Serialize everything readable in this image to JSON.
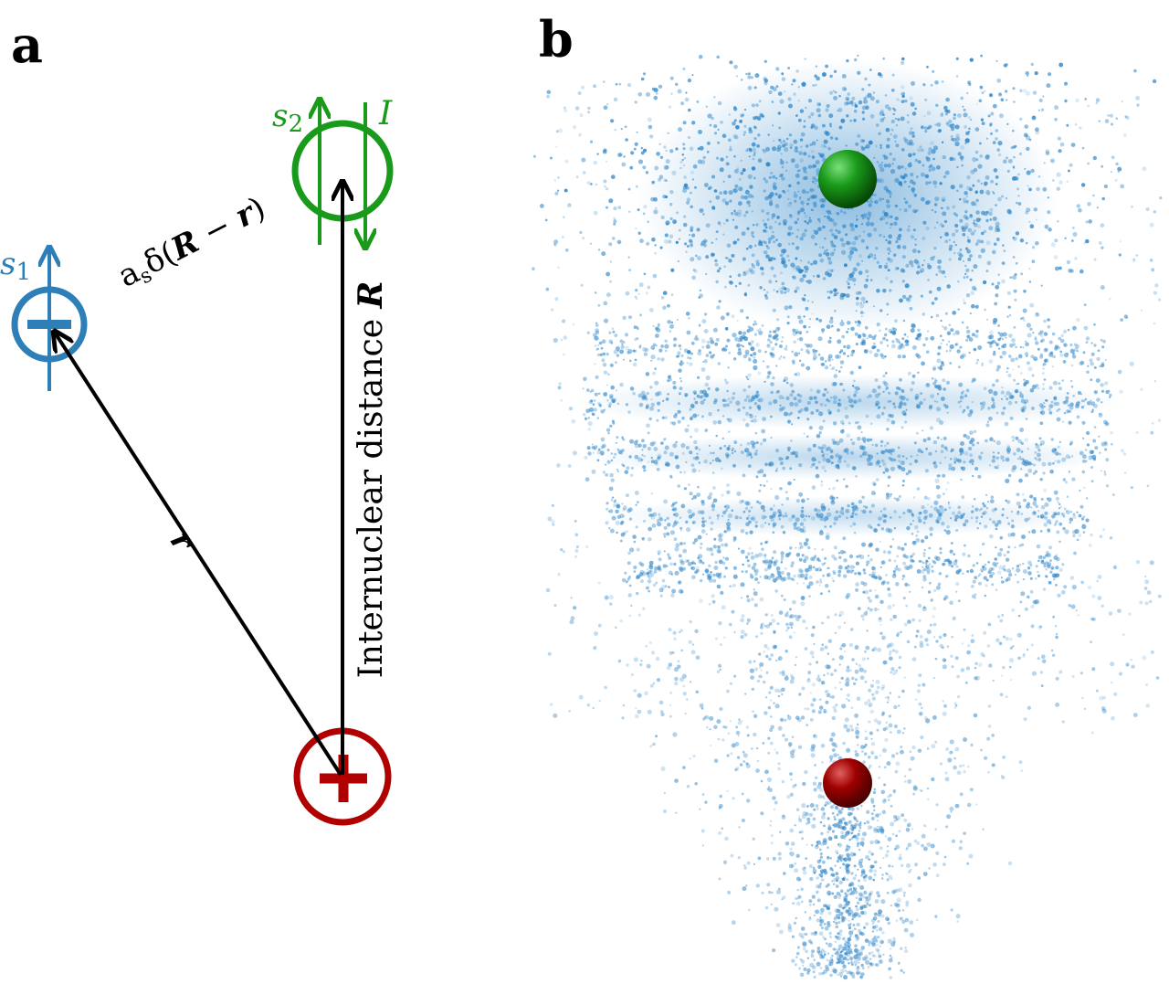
{
  "panel_a": {
    "label": "a",
    "electron_spin": {
      "symbol": "s",
      "subscript": "1"
    },
    "nucleus_spin": {
      "symbol": "s",
      "subscript": "2"
    },
    "nuclear_spin_label": "I",
    "contact_term": {
      "coefficient": "a",
      "subscript": "s",
      "open": "δ(",
      "vector1": "R",
      "operator": " − ",
      "vector2": "r",
      "close": ")"
    },
    "electron_vector": "r",
    "distance_label": {
      "text": "Internuclear distance",
      "vector": "R"
    }
  },
  "panel_b": {
    "label": "b"
  }
}
